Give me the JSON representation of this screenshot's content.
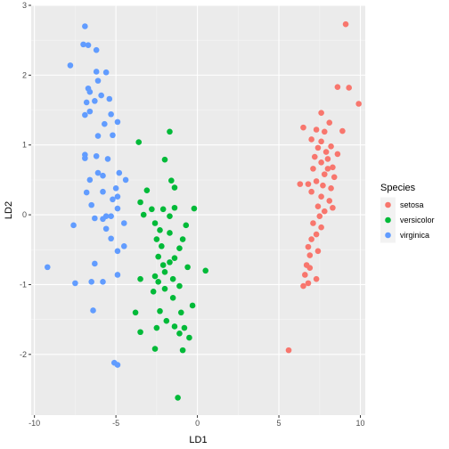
{
  "chart_data": {
    "type": "scatter",
    "xlabel": "LD1",
    "ylabel": "LD2",
    "xlim": [
      -10.2,
      10.3
    ],
    "ylim": [
      -2.87,
      3.0
    ],
    "x_ticks": [
      -10,
      -5,
      0,
      5,
      10
    ],
    "y_ticks": [
      -2,
      -1,
      0,
      1,
      2,
      3
    ],
    "grid": true,
    "legend": {
      "title": "Species",
      "position": "right"
    },
    "series": [
      {
        "name": "setosa",
        "color": "#F8766D",
        "points": [
          [
            9.1,
            2.73
          ],
          [
            8.6,
            1.83
          ],
          [
            9.3,
            1.82
          ],
          [
            9.9,
            1.59
          ],
          [
            7.6,
            1.46
          ],
          [
            6.5,
            1.25
          ],
          [
            7.3,
            1.22
          ],
          [
            7.8,
            1.19
          ],
          [
            8.1,
            1.32
          ],
          [
            8.9,
            1.2
          ],
          [
            7.0,
            1.08
          ],
          [
            7.6,
            1.05
          ],
          [
            8.2,
            0.98
          ],
          [
            7.4,
            0.96
          ],
          [
            7.9,
            0.9
          ],
          [
            8.6,
            0.87
          ],
          [
            7.2,
            0.83
          ],
          [
            8.0,
            0.8
          ],
          [
            7.6,
            0.75
          ],
          [
            8.3,
            0.68
          ],
          [
            8.0,
            0.66
          ],
          [
            7.1,
            0.66
          ],
          [
            7.8,
            0.58
          ],
          [
            8.4,
            0.54
          ],
          [
            7.3,
            0.48
          ],
          [
            6.3,
            0.44
          ],
          [
            6.8,
            0.44
          ],
          [
            7.7,
            0.42
          ],
          [
            8.2,
            0.38
          ],
          [
            7.0,
            0.33
          ],
          [
            7.6,
            0.26
          ],
          [
            8.1,
            0.2
          ],
          [
            7.4,
            0.12
          ],
          [
            8.3,
            0.1
          ],
          [
            7.8,
            0.05
          ],
          [
            7.5,
            -0.02
          ],
          [
            7.1,
            -0.12
          ],
          [
            7.6,
            -0.18
          ],
          [
            7.3,
            -0.28
          ],
          [
            7.0,
            -0.35
          ],
          [
            6.8,
            -0.46
          ],
          [
            7.4,
            -0.52
          ],
          [
            6.9,
            -0.58
          ],
          [
            6.7,
            -0.72
          ],
          [
            6.9,
            -0.76
          ],
          [
            6.6,
            -0.86
          ],
          [
            7.3,
            -0.92
          ],
          [
            6.5,
            -1.02
          ],
          [
            6.8,
            -0.98
          ],
          [
            5.6,
            -1.94
          ]
        ]
      },
      {
        "name": "versicolor",
        "color": "#00BA38",
        "points": [
          [
            -3.6,
            1.04
          ],
          [
            -1.7,
            1.19
          ],
          [
            -2.0,
            0.79
          ],
          [
            -1.6,
            0.49
          ],
          [
            -3.1,
            0.35
          ],
          [
            -1.4,
            0.39
          ],
          [
            -3.5,
            0.18
          ],
          [
            -2.8,
            0.08
          ],
          [
            -2.1,
            0.08
          ],
          [
            -1.4,
            0.1
          ],
          [
            -0.2,
            0.09
          ],
          [
            -3.3,
            0.0
          ],
          [
            -1.7,
            -0.02
          ],
          [
            -2.6,
            -0.12
          ],
          [
            -0.7,
            -0.15
          ],
          [
            -2.3,
            -0.22
          ],
          [
            -1.7,
            -0.26
          ],
          [
            -0.9,
            -0.35
          ],
          [
            -2.5,
            -0.35
          ],
          [
            -2.2,
            -0.45
          ],
          [
            -1.1,
            -0.48
          ],
          [
            -2.4,
            -0.6
          ],
          [
            -1.4,
            -0.62
          ],
          [
            -1.7,
            -0.68
          ],
          [
            -2.1,
            -0.72
          ],
          [
            -0.6,
            -0.75
          ],
          [
            0.5,
            -0.8
          ],
          [
            -2.0,
            -0.82
          ],
          [
            -2.6,
            -0.88
          ],
          [
            -1.5,
            -0.92
          ],
          [
            -3.5,
            -0.92
          ],
          [
            -2.4,
            -0.96
          ],
          [
            -1.1,
            -1.02
          ],
          [
            -2.0,
            -1.06
          ],
          [
            -2.7,
            -1.1
          ],
          [
            -1.5,
            -1.19
          ],
          [
            -0.3,
            -1.3
          ],
          [
            -2.3,
            -1.38
          ],
          [
            -1.0,
            -1.4
          ],
          [
            -3.8,
            -1.4
          ],
          [
            -1.9,
            -1.52
          ],
          [
            -1.4,
            -1.6
          ],
          [
            -0.8,
            -1.62
          ],
          [
            -2.5,
            -1.62
          ],
          [
            -3.5,
            -1.68
          ],
          [
            -1.1,
            -1.7
          ],
          [
            -0.5,
            -1.76
          ],
          [
            -2.6,
            -1.92
          ],
          [
            -0.9,
            -1.94
          ],
          [
            -1.2,
            -2.62
          ]
        ]
      },
      {
        "name": "virginica",
        "color": "#619CFF",
        "points": [
          [
            -6.9,
            2.7
          ],
          [
            -7.0,
            2.44
          ],
          [
            -6.7,
            2.43
          ],
          [
            -6.2,
            2.36
          ],
          [
            -7.8,
            2.14
          ],
          [
            -6.2,
            2.05
          ],
          [
            -5.6,
            2.04
          ],
          [
            -6.1,
            1.92
          ],
          [
            -6.7,
            1.81
          ],
          [
            -6.6,
            1.76
          ],
          [
            -5.9,
            1.71
          ],
          [
            -6.3,
            1.63
          ],
          [
            -6.8,
            1.61
          ],
          [
            -5.4,
            1.66
          ],
          [
            -6.6,
            1.48
          ],
          [
            -5.3,
            1.44
          ],
          [
            -6.9,
            1.43
          ],
          [
            -4.9,
            1.33
          ],
          [
            -5.7,
            1.3
          ],
          [
            -6.1,
            1.13
          ],
          [
            -5.2,
            1.14
          ],
          [
            -6.9,
            0.86
          ],
          [
            -6.2,
            0.84
          ],
          [
            -6.9,
            0.81
          ],
          [
            -5.5,
            0.8
          ],
          [
            -6.1,
            0.6
          ],
          [
            -4.8,
            0.6
          ],
          [
            -5.8,
            0.56
          ],
          [
            -4.4,
            0.5
          ],
          [
            -6.6,
            0.5
          ],
          [
            -5.8,
            0.33
          ],
          [
            -5.0,
            0.38
          ],
          [
            -6.8,
            0.32
          ],
          [
            -4.9,
            0.26
          ],
          [
            -5.2,
            0.22
          ],
          [
            -6.5,
            0.14
          ],
          [
            -4.9,
            0.09
          ],
          [
            -5.3,
            -0.02
          ],
          [
            -5.6,
            -0.02
          ],
          [
            -5.8,
            -0.06
          ],
          [
            -6.3,
            -0.05
          ],
          [
            -4.5,
            -0.12
          ],
          [
            -7.6,
            -0.15
          ],
          [
            -5.6,
            -0.2
          ],
          [
            -5.3,
            -0.34
          ],
          [
            -4.5,
            -0.45
          ],
          [
            -4.9,
            -0.52
          ],
          [
            -6.3,
            -0.7
          ],
          [
            -9.2,
            -0.75
          ],
          [
            -4.9,
            -0.86
          ],
          [
            -5.8,
            -0.96
          ],
          [
            -7.5,
            -0.98
          ],
          [
            -6.5,
            -0.96
          ],
          [
            -6.4,
            -1.37
          ],
          [
            -5.1,
            -2.12
          ],
          [
            -4.9,
            -2.15
          ]
        ]
      }
    ]
  }
}
